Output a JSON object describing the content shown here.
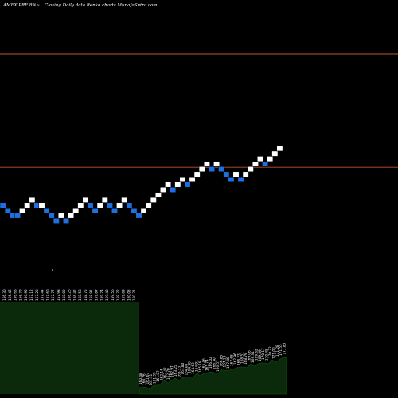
{
  "header": {
    "symbol": "AMEX PRF 8%~",
    "caption": "Closing Daily data Renko charts MunafaSutra.com"
  },
  "colors": {
    "background": "#000000",
    "up_brick": "#ffffff",
    "down_brick": "#1e6fe0",
    "brick_edge": "#000000",
    "reference_line": "#c0542a",
    "volume_fill": "#0b2a0b",
    "volume_stroke": "#0f5a0f"
  },
  "chart_data": {
    "type": "renko",
    "ylim": [
      157.5,
      180.5
    ],
    "brick_size": 0.43,
    "reference_lines": [
      167.46,
      176.91
    ],
    "bricks": [
      {
        "dir": "down",
        "value": 164.28
      },
      {
        "dir": "down",
        "value": 163.85
      },
      {
        "dir": "down",
        "value": 163.42
      },
      {
        "dir": "down",
        "value": 163.42
      },
      {
        "dir": "up",
        "value": 163.85
      },
      {
        "dir": "up",
        "value": 164.28
      },
      {
        "dir": "up",
        "value": 164.72
      },
      {
        "dir": "down",
        "value": 164.28
      },
      {
        "dir": "up",
        "value": 164.28
      },
      {
        "dir": "down",
        "value": 163.85
      },
      {
        "dir": "down",
        "value": 163.42
      },
      {
        "dir": "down",
        "value": 162.99
      },
      {
        "dir": "up",
        "value": 163.42
      },
      {
        "dir": "down",
        "value": 162.99
      },
      {
        "dir": "up",
        "value": 163.42
      },
      {
        "dir": "up",
        "value": 163.85
      },
      {
        "dir": "up",
        "value": 164.28
      },
      {
        "dir": "up",
        "value": 164.72
      },
      {
        "dir": "down",
        "value": 164.28
      },
      {
        "dir": "down",
        "value": 163.85
      },
      {
        "dir": "up",
        "value": 164.28
      },
      {
        "dir": "up",
        "value": 164.72
      },
      {
        "dir": "down",
        "value": 164.28
      },
      {
        "dir": "down",
        "value": 163.85
      },
      {
        "dir": "up",
        "value": 164.28
      },
      {
        "dir": "up",
        "value": 164.72
      },
      {
        "dir": "down",
        "value": 164.28
      },
      {
        "dir": "down",
        "value": 163.85
      },
      {
        "dir": "down",
        "value": 163.42
      },
      {
        "dir": "up",
        "value": 163.85
      },
      {
        "dir": "up",
        "value": 164.28
      },
      {
        "dir": "up",
        "value": 164.72
      },
      {
        "dir": "up",
        "value": 165.15
      },
      {
        "dir": "up",
        "value": 165.58
      },
      {
        "dir": "up",
        "value": 166.01
      },
      {
        "dir": "down",
        "value": 165.58
      },
      {
        "dir": "up",
        "value": 166.01
      },
      {
        "dir": "up",
        "value": 166.44
      },
      {
        "dir": "down",
        "value": 166.01
      },
      {
        "dir": "up",
        "value": 166.44
      },
      {
        "dir": "up",
        "value": 166.87
      },
      {
        "dir": "up",
        "value": 167.3
      },
      {
        "dir": "up",
        "value": 167.73
      },
      {
        "dir": "down",
        "value": 167.3
      },
      {
        "dir": "up",
        "value": 167.73
      },
      {
        "dir": "down",
        "value": 167.3
      },
      {
        "dir": "down",
        "value": 166.87
      },
      {
        "dir": "down",
        "value": 166.44
      },
      {
        "dir": "up",
        "value": 166.87
      },
      {
        "dir": "down",
        "value": 166.44
      },
      {
        "dir": "up",
        "value": 166.87
      },
      {
        "dir": "up",
        "value": 167.3
      },
      {
        "dir": "up",
        "value": 167.73
      },
      {
        "dir": "up",
        "value": 168.16
      },
      {
        "dir": "down",
        "value": 167.73
      },
      {
        "dir": "up",
        "value": 168.16
      },
      {
        "dir": "up",
        "value": 168.59
      },
      {
        "dir": "up",
        "value": 169.02
      }
    ],
    "volume_labels_left": [
      "156.30",
      "156.46",
      "156.63",
      "156.79",
      "156.95",
      "157.12",
      "157.28",
      "157.44",
      "157.60",
      "157.77",
      "157.93",
      "158.09",
      "158.26",
      "158.42",
      "158.58",
      "158.75",
      "158.91",
      "159.07",
      "159.24",
      "159.40",
      "159.56",
      "159.72",
      "159.89",
      "160.05",
      "160.21"
    ],
    "volume_labels_right": [
      "160.48",
      "160.76",
      "161.03",
      "161.31",
      "161.59",
      "161.87",
      "162.14",
      "162.42",
      "162.70",
      "162.97",
      "163.25",
      "163.53",
      "163.80",
      "164.08",
      "164.36",
      "164.63",
      "164.91",
      "165.19",
      "165.46",
      "165.74",
      "166.02",
      "166.30",
      "166.57",
      "166.85",
      "167.13",
      "167.40",
      "167.68",
      "167.96",
      "168.23",
      "168.51",
      "168.79",
      "169.06",
      "169.34",
      "169.62",
      "169.89",
      "170.17",
      "170.45",
      "170.72",
      "171.00",
      "171.28",
      "171.55",
      "171.83"
    ],
    "volume_right": [
      0.1,
      0.08,
      0.11,
      0.07,
      0.12,
      0.16,
      0.2,
      0.24,
      0.22,
      0.28,
      0.3,
      0.27,
      0.35,
      0.33,
      0.38,
      0.36,
      0.42,
      0.4,
      0.46,
      0.44,
      0.5,
      0.48,
      0.42,
      0.55,
      0.53,
      0.5,
      0.56,
      0.6,
      0.58,
      0.62,
      0.6,
      0.66,
      0.64,
      0.7,
      0.68,
      0.72,
      0.7,
      0.76,
      0.74,
      0.8,
      0.82,
      0.85
    ]
  }
}
